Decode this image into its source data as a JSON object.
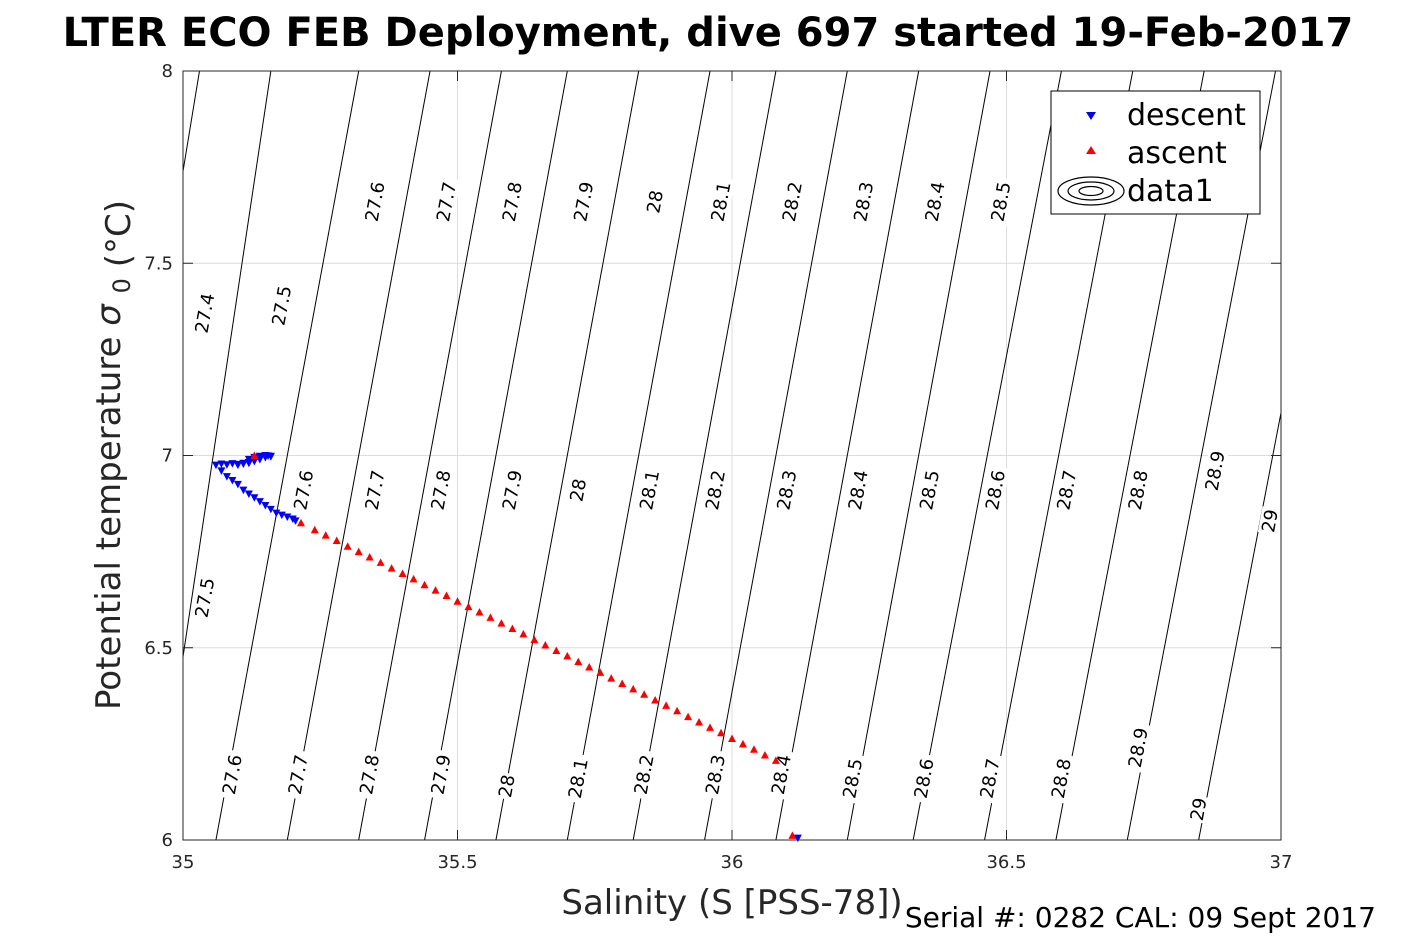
{
  "chart_data": {
    "type": "scatter",
    "title": "LTER ECO FEB Deployment, dive 697 started 19-Feb-2017",
    "xlabel": "Salinity (S [PSS-78])",
    "ylabel": "Potential temperature",
    "ylabel_symbol": "σ",
    "ylabel_sub": "0",
    "ylabel_unit": "(°C)",
    "xlim": [
      35,
      37
    ],
    "ylim": [
      6,
      8
    ],
    "x_ticks": [
      35,
      35.5,
      36,
      36.5,
      37
    ],
    "x_tick_labels": [
      "35",
      "35.5",
      "36",
      "36.5",
      "37"
    ],
    "y_ticks": [
      6,
      6.5,
      7,
      7.5,
      8
    ],
    "y_tick_labels": [
      "6",
      "6.5",
      "7",
      "7.5",
      "8"
    ],
    "grid": true,
    "legend_position": "top-right",
    "series": [
      {
        "name": "descent",
        "marker": "triangle-down",
        "color": "#0000ff",
        "x": [
          35.06,
          35.07,
          35.08,
          35.09,
          35.1,
          35.11,
          35.12,
          35.13,
          35.14,
          35.15,
          35.16,
          35.1,
          35.11,
          35.12,
          35.13,
          35.14,
          35.15,
          35.16,
          35.07,
          35.08,
          35.09,
          35.1,
          35.11,
          35.12,
          35.13,
          35.14,
          35.15,
          35.16,
          35.17,
          35.18,
          35.19,
          35.2,
          35.205,
          35.12,
          35.13,
          35.14,
          35.15,
          35.155,
          36.12
        ],
        "y": [
          6.975,
          6.978,
          6.976,
          6.979,
          6.977,
          6.98,
          6.982,
          6.985,
          6.99,
          6.995,
          6.998,
          6.975,
          6.978,
          6.98,
          6.985,
          6.99,
          6.995,
          6.997,
          6.96,
          6.945,
          6.935,
          6.925,
          6.91,
          6.9,
          6.89,
          6.88,
          6.87,
          6.86,
          6.85,
          6.845,
          6.84,
          6.835,
          6.83,
          6.99,
          6.995,
          6.998,
          7.0,
          6.999,
          6.005
        ]
      },
      {
        "name": "ascent",
        "marker": "triangle-up",
        "color": "#ff0000",
        "x": [
          35.215,
          35.24,
          35.26,
          35.28,
          35.3,
          35.32,
          35.34,
          35.36,
          35.38,
          35.4,
          35.42,
          35.44,
          35.46,
          35.48,
          35.5,
          35.52,
          35.54,
          35.56,
          35.58,
          35.6,
          35.62,
          35.64,
          35.66,
          35.68,
          35.7,
          35.72,
          35.74,
          35.76,
          35.78,
          35.8,
          35.82,
          35.84,
          35.86,
          35.88,
          35.9,
          35.92,
          35.94,
          35.96,
          35.98,
          36.0,
          36.02,
          36.04,
          36.06,
          36.08,
          36.11,
          35.13
        ],
        "y": [
          6.825,
          6.807,
          6.793,
          6.779,
          6.764,
          6.75,
          6.736,
          6.722,
          6.707,
          6.693,
          6.679,
          6.664,
          6.65,
          6.636,
          6.621,
          6.607,
          6.593,
          6.579,
          6.564,
          6.55,
          6.536,
          6.521,
          6.507,
          6.493,
          6.479,
          6.464,
          6.45,
          6.436,
          6.421,
          6.407,
          6.393,
          6.379,
          6.364,
          6.35,
          6.336,
          6.321,
          6.307,
          6.293,
          6.279,
          6.264,
          6.25,
          6.236,
          6.221,
          6.207,
          6.012,
          7.0
        ]
      }
    ],
    "density_contours": {
      "name": "data1",
      "levels": [
        "27.4",
        "27.5",
        "27.6",
        "27.7",
        "27.8",
        "27.9",
        "28",
        "28.1",
        "28.2",
        "28.3",
        "28.4",
        "28.5",
        "28.6",
        "28.7",
        "28.8",
        "28.9",
        "29"
      ],
      "line_color": "#000000",
      "lines": [
        {
          "level": "27.4",
          "top": [
            35.03,
            8.0
          ],
          "bottom": [
            34.8,
            6.0
          ]
        },
        {
          "level": "27.5",
          "top": [
            35.16,
            8.0
          ],
          "bottom": [
            34.95,
            6.0
          ]
        },
        {
          "level": "27.6",
          "top": [
            35.32,
            8.0
          ],
          "bottom": [
            35.06,
            6.0
          ]
        },
        {
          "level": "27.7",
          "top": [
            35.45,
            8.0
          ],
          "bottom": [
            35.19,
            6.0
          ]
        },
        {
          "level": "27.8",
          "top": [
            35.58,
            8.0
          ],
          "bottom": [
            35.32,
            6.0
          ]
        },
        {
          "level": "27.9",
          "top": [
            35.7,
            8.0
          ],
          "bottom": [
            35.44,
            6.0
          ]
        },
        {
          "level": "28",
          "top": [
            35.83,
            8.0
          ],
          "bottom": [
            35.57,
            6.0
          ]
        },
        {
          "level": "28.1",
          "top": [
            35.96,
            8.0
          ],
          "bottom": [
            35.7,
            6.0
          ]
        },
        {
          "level": "28.2",
          "top": [
            36.08,
            8.0
          ],
          "bottom": [
            35.82,
            6.0
          ]
        },
        {
          "level": "28.3",
          "top": [
            36.21,
            8.0
          ],
          "bottom": [
            35.95,
            6.0
          ]
        },
        {
          "level": "28.4",
          "top": [
            36.34,
            8.0
          ],
          "bottom": [
            36.08,
            6.0
          ]
        },
        {
          "level": "28.5",
          "top": [
            36.47,
            8.0
          ],
          "bottom": [
            36.21,
            6.0
          ]
        },
        {
          "level": "28.6",
          "top": [
            36.6,
            8.0
          ],
          "bottom": [
            36.33,
            6.0
          ]
        },
        {
          "level": "28.7",
          "top": [
            36.73,
            8.0
          ],
          "bottom": [
            36.46,
            6.0
          ]
        },
        {
          "level": "28.8",
          "top": [
            36.86,
            8.0
          ],
          "bottom": [
            36.59,
            6.0
          ]
        },
        {
          "level": "28.9",
          "top": [
            36.99,
            8.0
          ],
          "bottom": [
            36.72,
            6.0
          ]
        },
        {
          "level": "29",
          "top": [
            37.12,
            8.0
          ],
          "bottom": [
            36.85,
            6.0
          ]
        }
      ],
      "labels": [
        {
          "text": "27.4",
          "x": 35.04,
          "y": 7.37
        },
        {
          "text": "27.5",
          "x": 35.18,
          "y": 7.39
        },
        {
          "text": "27.6",
          "x": 35.35,
          "y": 7.66
        },
        {
          "text": "27.7",
          "x": 35.48,
          "y": 7.66
        },
        {
          "text": "27.8",
          "x": 35.6,
          "y": 7.66
        },
        {
          "text": "27.9",
          "x": 35.73,
          "y": 7.66
        },
        {
          "text": "28",
          "x": 35.86,
          "y": 7.66
        },
        {
          "text": "28.1",
          "x": 35.98,
          "y": 7.66
        },
        {
          "text": "28.2",
          "x": 36.11,
          "y": 7.66
        },
        {
          "text": "28.3",
          "x": 36.24,
          "y": 7.66
        },
        {
          "text": "28.4",
          "x": 36.37,
          "y": 7.66
        },
        {
          "text": "28.5",
          "x": 36.49,
          "y": 7.66
        },
        {
          "text": "27.5",
          "x": 35.04,
          "y": 6.63
        },
        {
          "text": "27.6",
          "x": 35.22,
          "y": 6.91
        },
        {
          "text": "27.7",
          "x": 35.35,
          "y": 6.91
        },
        {
          "text": "27.8",
          "x": 35.47,
          "y": 6.91
        },
        {
          "text": "27.9",
          "x": 35.6,
          "y": 6.91
        },
        {
          "text": "28",
          "x": 35.72,
          "y": 6.91
        },
        {
          "text": "28.1",
          "x": 35.85,
          "y": 6.91
        },
        {
          "text": "28.2",
          "x": 35.97,
          "y": 6.91
        },
        {
          "text": "28.3",
          "x": 36.1,
          "y": 6.91
        },
        {
          "text": "28.4",
          "x": 36.23,
          "y": 6.91
        },
        {
          "text": "28.5",
          "x": 36.36,
          "y": 6.91
        },
        {
          "text": "28.6",
          "x": 36.48,
          "y": 6.91
        },
        {
          "text": "28.7",
          "x": 36.61,
          "y": 6.91
        },
        {
          "text": "28.8",
          "x": 36.74,
          "y": 6.91
        },
        {
          "text": "28.9",
          "x": 36.88,
          "y": 6.96
        },
        {
          "text": "29",
          "x": 36.98,
          "y": 6.83
        },
        {
          "text": "27.6",
          "x": 35.09,
          "y": 6.17
        },
        {
          "text": "27.7",
          "x": 35.21,
          "y": 6.17
        },
        {
          "text": "27.8",
          "x": 35.34,
          "y": 6.17
        },
        {
          "text": "27.9",
          "x": 35.47,
          "y": 6.17
        },
        {
          "text": "28",
          "x": 35.59,
          "y": 6.14
        },
        {
          "text": "28.1",
          "x": 35.72,
          "y": 6.16
        },
        {
          "text": "28.2",
          "x": 35.84,
          "y": 6.17
        },
        {
          "text": "28.3",
          "x": 35.97,
          "y": 6.17
        },
        {
          "text": "28.4",
          "x": 36.09,
          "y": 6.17
        },
        {
          "text": "28.5",
          "x": 36.22,
          "y": 6.16
        },
        {
          "text": "28.6",
          "x": 36.35,
          "y": 6.16
        },
        {
          "text": "28.7",
          "x": 36.47,
          "y": 6.16
        },
        {
          "text": "28.8",
          "x": 36.6,
          "y": 6.16
        },
        {
          "text": "28.9",
          "x": 36.74,
          "y": 6.24
        },
        {
          "text": "29",
          "x": 36.85,
          "y": 6.08
        }
      ]
    }
  },
  "footer": {
    "serial_text": "Serial #: 0282  CAL: 09 Sept 2017"
  }
}
